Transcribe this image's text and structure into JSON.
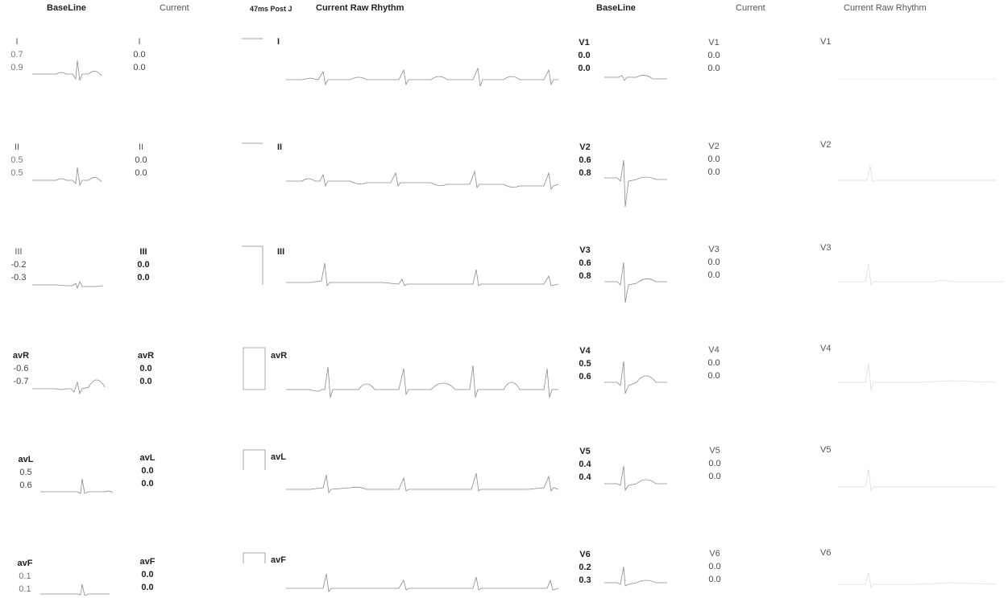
{
  "headers": {
    "left_baseline": "BaseLine",
    "left_current": "Current",
    "post_j": "47ms Post J",
    "left_raw": "Current Raw Rhythm",
    "right_baseline": "BaseLine",
    "right_current": "Current",
    "right_raw": "Current Raw Rhythm"
  },
  "left_leads": [
    {
      "name": "I",
      "baseline": [
        "0.7",
        "0.9"
      ],
      "current": [
        "0.0",
        "0.0"
      ]
    },
    {
      "name": "II",
      "baseline": [
        "0.5",
        "0.5"
      ],
      "current": [
        "0.0",
        "0.0"
      ]
    },
    {
      "name": "III",
      "baseline": [
        "-0.2",
        "-0.3"
      ],
      "current": [
        "0.0",
        "0.0"
      ]
    },
    {
      "name": "avR",
      "baseline": [
        "-0.6",
        "-0.7"
      ],
      "current": [
        "0.0",
        "0.0"
      ]
    },
    {
      "name": "avL",
      "baseline": [
        "0.5",
        "0.6"
      ],
      "current": [
        "0.0",
        "0.0"
      ]
    },
    {
      "name": "avF",
      "baseline": [
        "0.1",
        "0.1"
      ],
      "current": [
        "0.0",
        "0.0"
      ]
    }
  ],
  "right_leads": [
    {
      "name": "V1",
      "baseline": [
        "0.0",
        "0.0"
      ],
      "current": [
        "0.0",
        "0.0"
      ]
    },
    {
      "name": "V2",
      "baseline": [
        "0.6",
        "0.8"
      ],
      "current": [
        "0.0",
        "0.0"
      ]
    },
    {
      "name": "V3",
      "baseline": [
        "0.6",
        "0.8"
      ],
      "current": [
        "0.0",
        "0.0"
      ]
    },
    {
      "name": "V4",
      "baseline": [
        "0.5",
        "0.6"
      ],
      "current": [
        "0.0",
        "0.0"
      ]
    },
    {
      "name": "V5",
      "baseline": [
        "0.4",
        "0.4"
      ],
      "current": [
        "0.0",
        "0.0"
      ]
    },
    {
      "name": "V6",
      "baseline": [
        "0.2",
        "0.3"
      ],
      "current": [
        "0.0",
        "0.0"
      ]
    }
  ]
}
